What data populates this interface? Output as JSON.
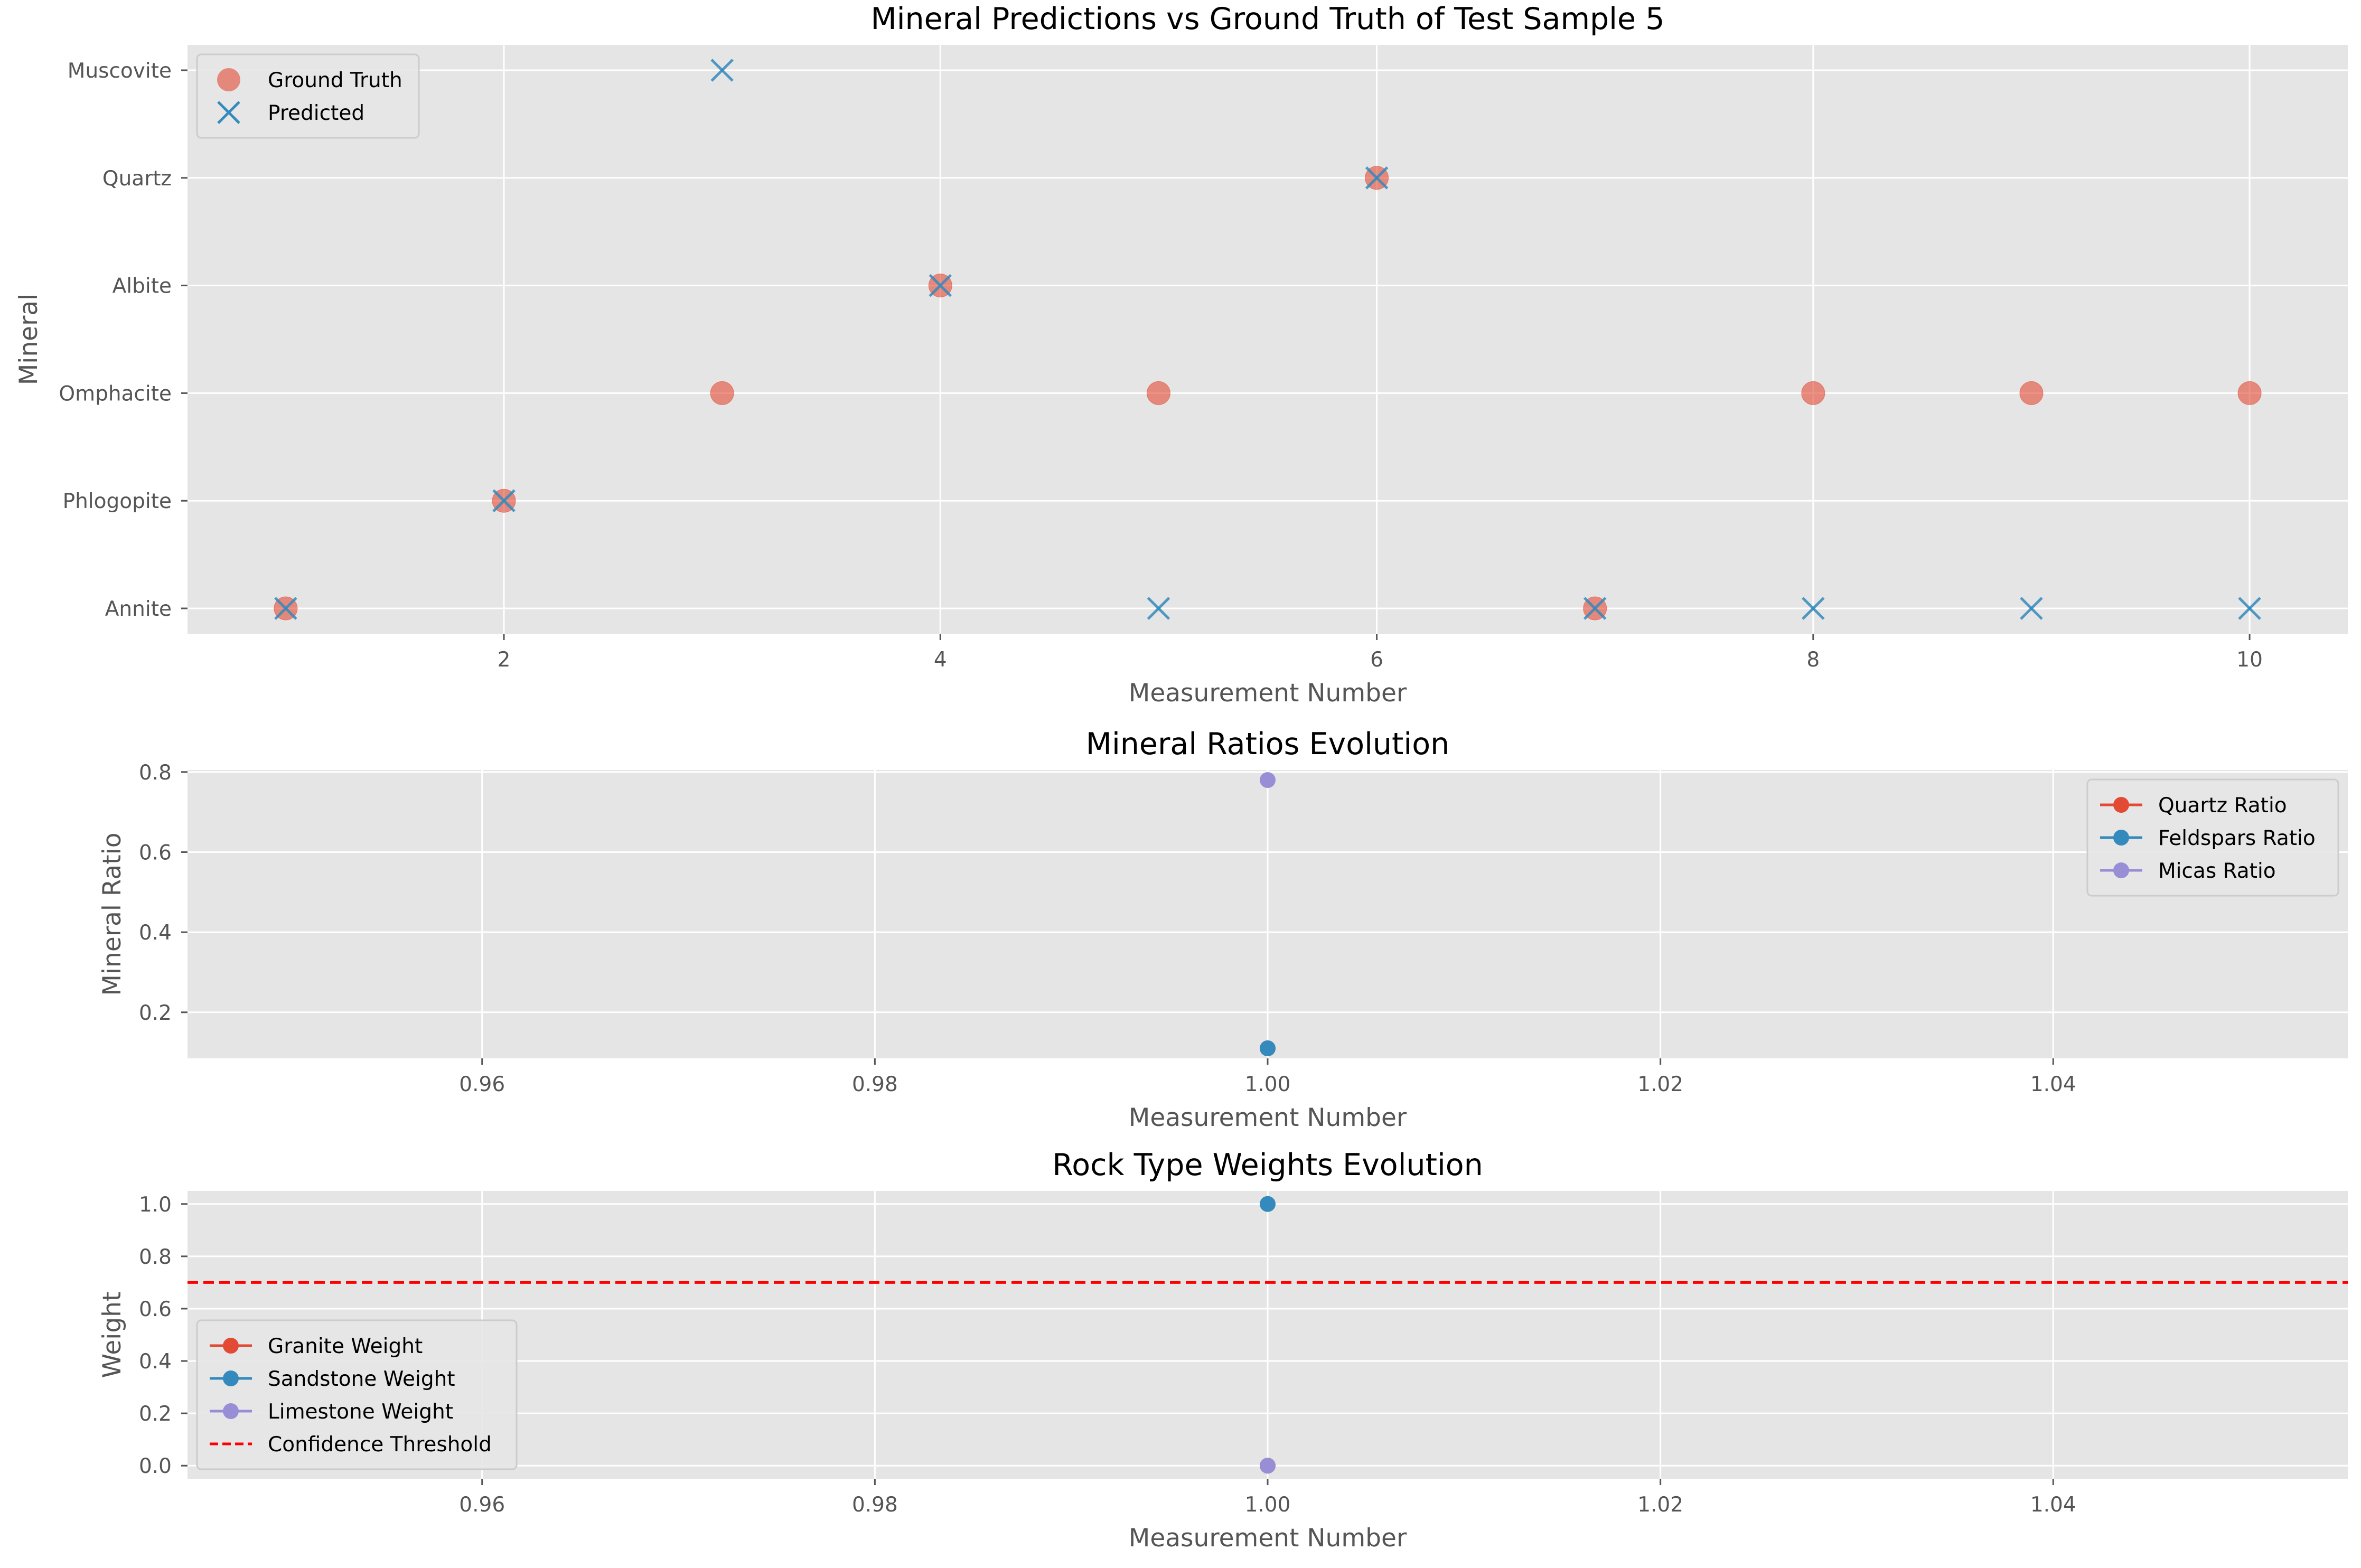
{
  "chart_data": [
    {
      "type": "scatter",
      "title": "Mineral Predictions vs Ground Truth of Test Sample 5",
      "xlabel": "Measurement Number",
      "ylabel": "Mineral",
      "xlim": [
        0.55,
        10.45
      ],
      "xticks": [
        2,
        4,
        6,
        8,
        10
      ],
      "ycategories": [
        "Annite",
        "Phlogopite",
        "Omphacite",
        "Albite",
        "Quartz",
        "Muscovite"
      ],
      "grid": true,
      "legend_position": "upper left",
      "series": [
        {
          "name": "Ground Truth",
          "marker": "circle",
          "color": "#E24A33",
          "x": [
            1,
            2,
            3,
            4,
            5,
            6,
            7,
            8,
            9,
            10
          ],
          "y": [
            "Annite",
            "Phlogopite",
            "Omphacite",
            "Albite",
            "Omphacite",
            "Quartz",
            "Annite",
            "Omphacite",
            "Omphacite",
            "Omphacite"
          ]
        },
        {
          "name": "Predicted",
          "marker": "x",
          "color": "#348ABD",
          "x": [
            1,
            2,
            3,
            4,
            5,
            6,
            7,
            8,
            9,
            10
          ],
          "y": [
            "Annite",
            "Phlogopite",
            "Muscovite",
            "Albite",
            "Annite",
            "Quartz",
            "Annite",
            "Annite",
            "Annite",
            "Annite"
          ]
        }
      ]
    },
    {
      "type": "line",
      "title": "Mineral Ratios Evolution",
      "xlabel": "Measurement Number",
      "ylabel": "Mineral Ratio",
      "xlim": [
        0.945,
        1.055
      ],
      "ylim": [
        0.085,
        0.805
      ],
      "xticks": [
        0.96,
        0.98,
        1.0,
        1.02,
        1.04
      ],
      "xtick_labels": [
        "0.96",
        "0.98",
        "1.00",
        "1.02",
        "1.04"
      ],
      "yticks": [
        0.2,
        0.4,
        0.6,
        0.8
      ],
      "ytick_labels": [
        "0.2",
        "0.4",
        "0.6",
        "0.8"
      ],
      "grid": true,
      "legend_position": "upper right",
      "series": [
        {
          "name": "Quartz Ratio",
          "color": "#E24A33",
          "x": [
            1.0
          ],
          "y": [
            0.11
          ]
        },
        {
          "name": "Feldspars Ratio",
          "color": "#348ABD",
          "x": [
            1.0
          ],
          "y": [
            0.11
          ]
        },
        {
          "name": "Micas Ratio",
          "color": "#988ED5",
          "x": [
            1.0
          ],
          "y": [
            0.78
          ]
        }
      ]
    },
    {
      "type": "line",
      "title": "Rock Type Weights Evolution",
      "xlabel": "Measurement Number",
      "ylabel": "Weight",
      "xlim": [
        0.945,
        1.055
      ],
      "ylim": [
        -0.05,
        1.05
      ],
      "xticks": [
        0.96,
        0.98,
        1.0,
        1.02,
        1.04
      ],
      "xtick_labels": [
        "0.96",
        "0.98",
        "1.00",
        "1.02",
        "1.04"
      ],
      "yticks": [
        0.0,
        0.2,
        0.4,
        0.6,
        0.8,
        1.0
      ],
      "ytick_labels": [
        "0.0",
        "0.2",
        "0.4",
        "0.6",
        "0.8",
        "1.0"
      ],
      "grid": true,
      "legend_position": "lower left",
      "series": [
        {
          "name": "Granite Weight",
          "color": "#E24A33",
          "x": [
            1.0
          ],
          "y": [
            0.0
          ]
        },
        {
          "name": "Sandstone Weight",
          "color": "#348ABD",
          "x": [
            1.0
          ],
          "y": [
            1.0
          ]
        },
        {
          "name": "Limestone Weight",
          "color": "#988ED5",
          "x": [
            1.0
          ],
          "y": [
            0.0
          ]
        }
      ],
      "threshold": {
        "name": "Confidence Threshold",
        "value": 0.7,
        "color": "#FF0000",
        "style": "dashed"
      }
    }
  ]
}
